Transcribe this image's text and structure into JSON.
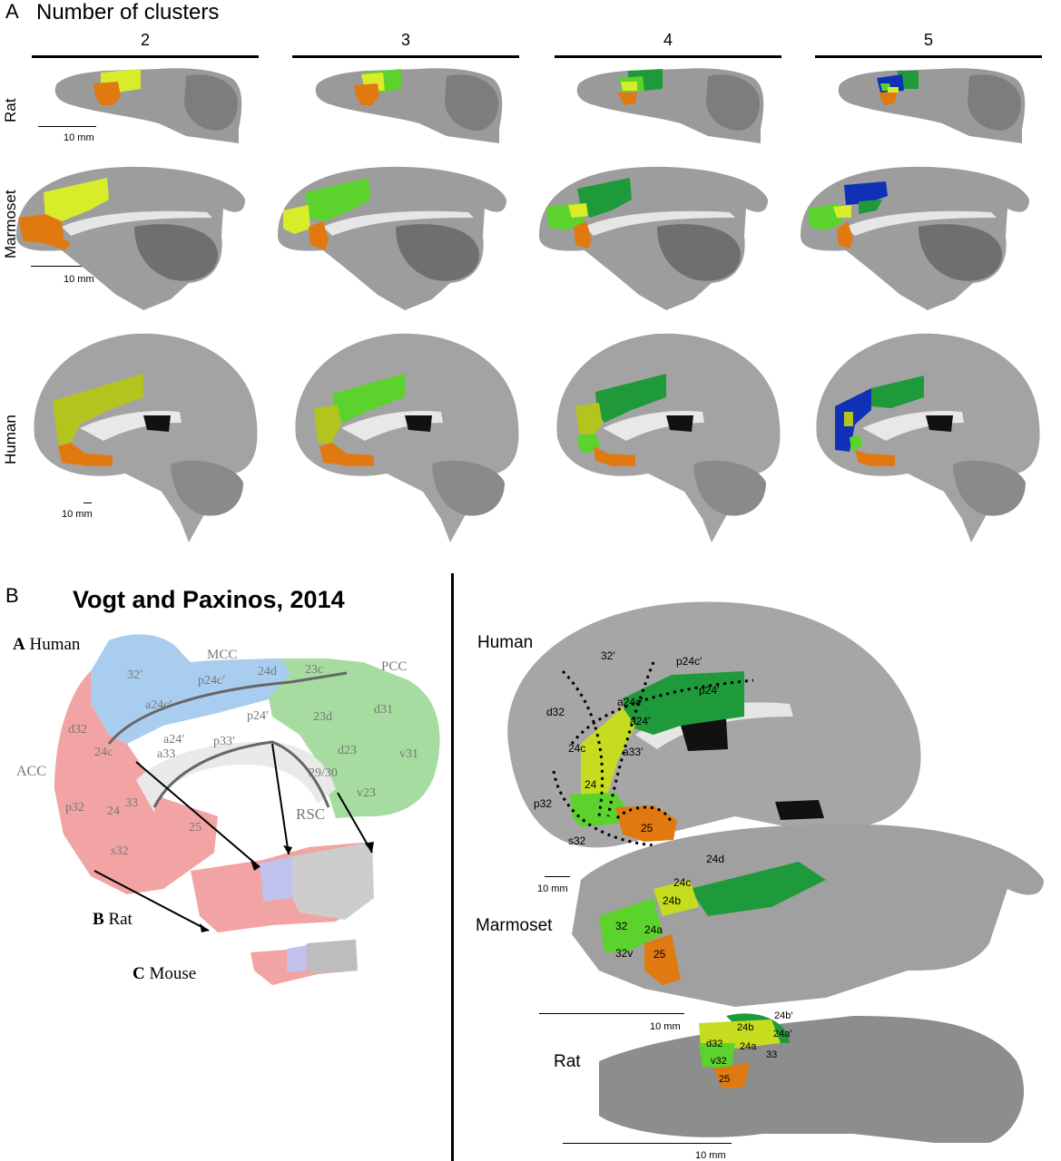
{
  "panel_a": {
    "letter": "A",
    "title": "Number of clusters",
    "columns": [
      "2",
      "3",
      "4",
      "5"
    ],
    "rows": [
      "Rat",
      "Marmoset",
      "Human"
    ],
    "scale_rat": "10 mm",
    "scale_marmoset": "10 mm",
    "scale_human": "10 mm"
  },
  "panel_b": {
    "letter": "B",
    "title": "Vogt and Paxinos, 2014",
    "atlas": {
      "human_letter": "A",
      "human_label": "Human",
      "rat_letter": "B",
      "rat_label": "Rat",
      "mouse_letter": "C",
      "mouse_label": "Mouse",
      "mcc": "MCC",
      "pcc": "PCC",
      "acc": "ACC",
      "rsc": "RSC",
      "areas": [
        "32′",
        "p24c′",
        "24d",
        "23c",
        "a24c′",
        "p24′",
        "23d",
        "d31",
        "d32",
        "a24′",
        "p33′",
        "a33",
        "d23",
        "v31",
        "24c",
        "29/30",
        "p32",
        "33",
        "24",
        "v23",
        "25",
        "s32"
      ]
    },
    "right": {
      "human_label": "Human",
      "marmoset_label": "Marmoset",
      "rat_label": "Rat",
      "scale_human": "10 mm",
      "scale_marmoset": "10 mm",
      "scale_rat": "10 mm",
      "human_areas": [
        "32′",
        "p24c′",
        "p24′",
        "d32",
        "a24c′",
        "a24′",
        "a33′",
        "24c",
        "24",
        "p32",
        "s32",
        "25"
      ],
      "marmoset_areas": [
        "24d",
        "24c",
        "24b",
        "32",
        "24a",
        "32v",
        "25"
      ],
      "rat_areas": [
        "24b′",
        "24a′",
        "24b",
        "d32",
        "24a",
        "v32",
        "33",
        "25"
      ]
    }
  },
  "colors": {
    "orange": "#e07a10",
    "yellow_green": "#c6dc1e",
    "light_green": "#5cd22c",
    "dark_green": "#1f9a3a",
    "blue": "#1030b8",
    "brain_gray": "#9a9a9a",
    "atlas_acc": "#f2a3a3",
    "atlas_mcc": "#a9cdef",
    "atlas_pcc": "#a6dca0"
  }
}
